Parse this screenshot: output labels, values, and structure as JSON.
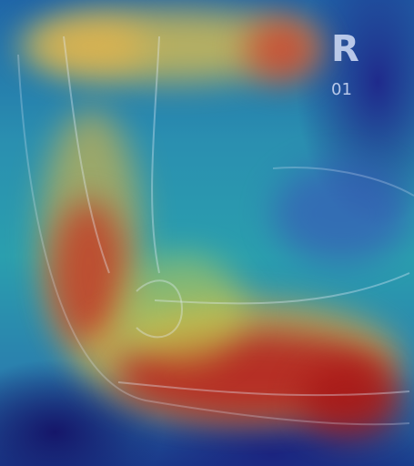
{
  "image": {
    "subject": "radiograph-heatmap-overlay",
    "colormap": "jet",
    "colors": {
      "cold": "#1a237e",
      "cool": "#2a9fae",
      "warm": "#e8c040",
      "hot": "#b81c1c"
    }
  },
  "markers": {
    "side": "R",
    "number": "01"
  }
}
